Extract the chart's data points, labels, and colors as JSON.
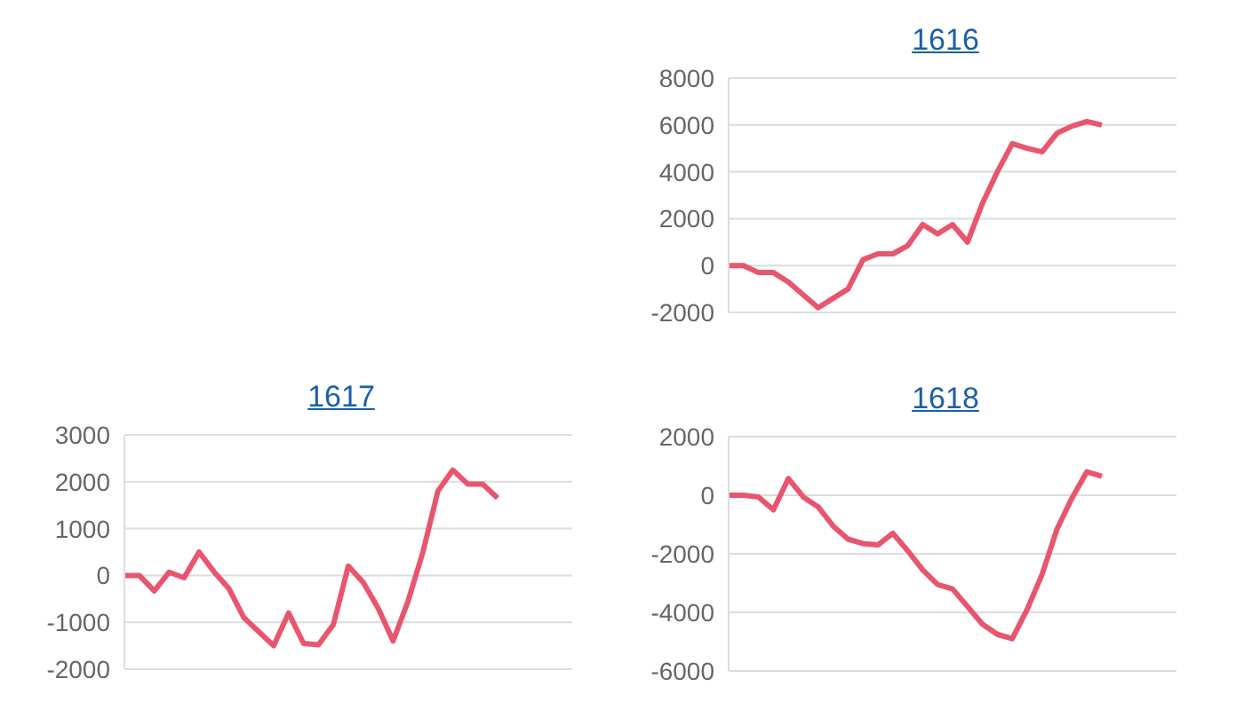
{
  "chart_data": [
    {
      "type": "line",
      "title": "1616",
      "categories": [
        null,
        null,
        null,
        null,
        null,
        null,
        null,
        null,
        null,
        null,
        null,
        null,
        null,
        null,
        null,
        null,
        null,
        null,
        null,
        null,
        null,
        null,
        null,
        null,
        null,
        null,
        null,
        null,
        null,
        null,
        null
      ],
      "series": [
        {
          "color": "#e8566e",
          "values": [
            0,
            0,
            -300,
            -300,
            -700,
            -1250,
            -1800,
            -1400,
            -1000,
            250,
            500,
            500,
            850,
            1750,
            1350,
            1750,
            1000,
            2650,
            4000,
            5200,
            5000,
            4850,
            5650,
            5950,
            6150,
            6000,
            null,
            null,
            null,
            null,
            null
          ]
        }
      ],
      "ylim": [
        -2000,
        8000
      ],
      "yticks": [
        -2000,
        0,
        2000,
        4000,
        6000,
        8000
      ],
      "grid": "y",
      "tick_labels": "y"
    },
    {
      "type": "line",
      "title": "1617",
      "categories": [
        null,
        null,
        null,
        null,
        null,
        null,
        null,
        null,
        null,
        null,
        null,
        null,
        null,
        null,
        null,
        null,
        null,
        null,
        null,
        null,
        null,
        null,
        null,
        null,
        null,
        null,
        null,
        null,
        null,
        null,
        null
      ],
      "series": [
        {
          "color": "#e8566e",
          "values": [
            0,
            0,
            -330,
            70,
            -50,
            500,
            80,
            -280,
            -900,
            -1200,
            -1500,
            -800,
            -1450,
            -1480,
            -1050,
            200,
            -150,
            -700,
            -1400,
            -550,
            500,
            1800,
            2250,
            1950,
            1950,
            1650,
            null,
            null,
            null,
            null,
            null
          ]
        }
      ],
      "ylim": [
        -2000,
        3000
      ],
      "yticks": [
        -2000,
        -1000,
        0,
        1000,
        2000,
        3000
      ],
      "grid": "y",
      "tick_labels": "y"
    },
    {
      "type": "line",
      "title": "1618",
      "categories": [
        null,
        null,
        null,
        null,
        null,
        null,
        null,
        null,
        null,
        null,
        null,
        null,
        null,
        null,
        null,
        null,
        null,
        null,
        null,
        null,
        null,
        null,
        null,
        null,
        null,
        null,
        null,
        null,
        null,
        null,
        null
      ],
      "series": [
        {
          "color": "#e8566e",
          "values": [
            0,
            0,
            -60,
            -500,
            570,
            -60,
            -400,
            -1050,
            -1500,
            -1650,
            -1700,
            -1300,
            -1900,
            -2550,
            -3050,
            -3200,
            -3800,
            -4400,
            -4750,
            -4900,
            -3900,
            -2700,
            -1150,
            -100,
            800,
            650,
            null,
            null,
            null,
            null,
            null
          ]
        }
      ],
      "ylim": [
        -6000,
        2000
      ],
      "yticks": [
        -6000,
        -4000,
        -2000,
        0,
        2000
      ],
      "grid": "y",
      "tick_labels": "y"
    }
  ]
}
